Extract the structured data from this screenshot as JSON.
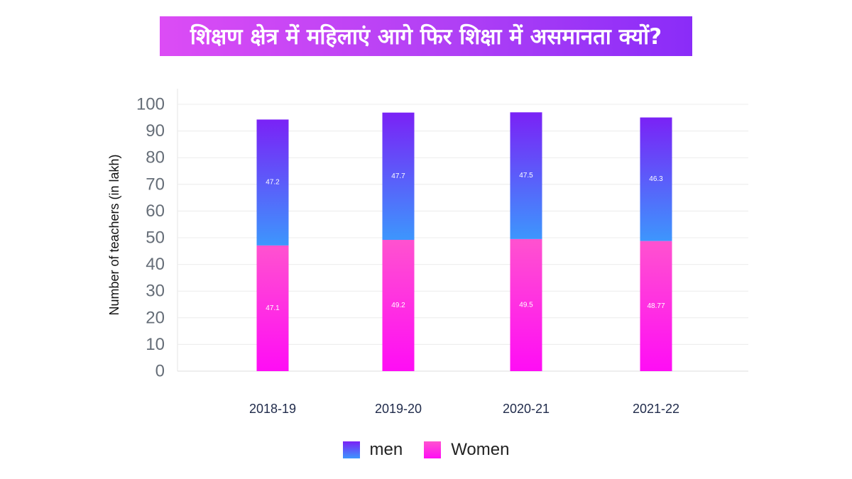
{
  "title": "शिक्षण क्षेत्र में महिलाएं आगे फिर शिक्षा में असमानता क्यों?",
  "colors": {
    "men_top": "#7a22f6",
    "men_bottom": "#3d96fd",
    "women_top": "#ff52cf",
    "women_bottom": "#ff0df5",
    "banner_start": "#dc4cf5",
    "banner_end": "#8a2cf8"
  },
  "chart_data": {
    "type": "bar",
    "stacked": true,
    "title": "शिक्षण क्षेत्र में महिलाएं आगे फिर शिक्षा में असमानता क्यों?",
    "xlabel": "",
    "ylabel": "Number of teachers (in lakh)",
    "ylim": [
      0,
      100
    ],
    "yticks": [
      "0",
      "10",
      "20",
      "30",
      "40",
      "50",
      "60",
      "70",
      "80",
      "90",
      "100"
    ],
    "categories": [
      "2018-19",
      "2019-20",
      "2020-21",
      "2021-22"
    ],
    "series": [
      {
        "name": "Women",
        "values": [
          47.1,
          49.2,
          49.5,
          48.77
        ],
        "labels": [
          "47.1",
          "49.2",
          "49.5",
          "48.77"
        ]
      },
      {
        "name": "men",
        "values": [
          47.2,
          47.7,
          47.5,
          46.3
        ],
        "labels": [
          "47.2",
          "47.7",
          "47.5",
          "46.3"
        ]
      }
    ],
    "legend": [
      {
        "name": "men",
        "swatch": "men"
      },
      {
        "name": "Women",
        "swatch": "women"
      }
    ],
    "grid": true,
    "legend_position": "bottom-center"
  }
}
